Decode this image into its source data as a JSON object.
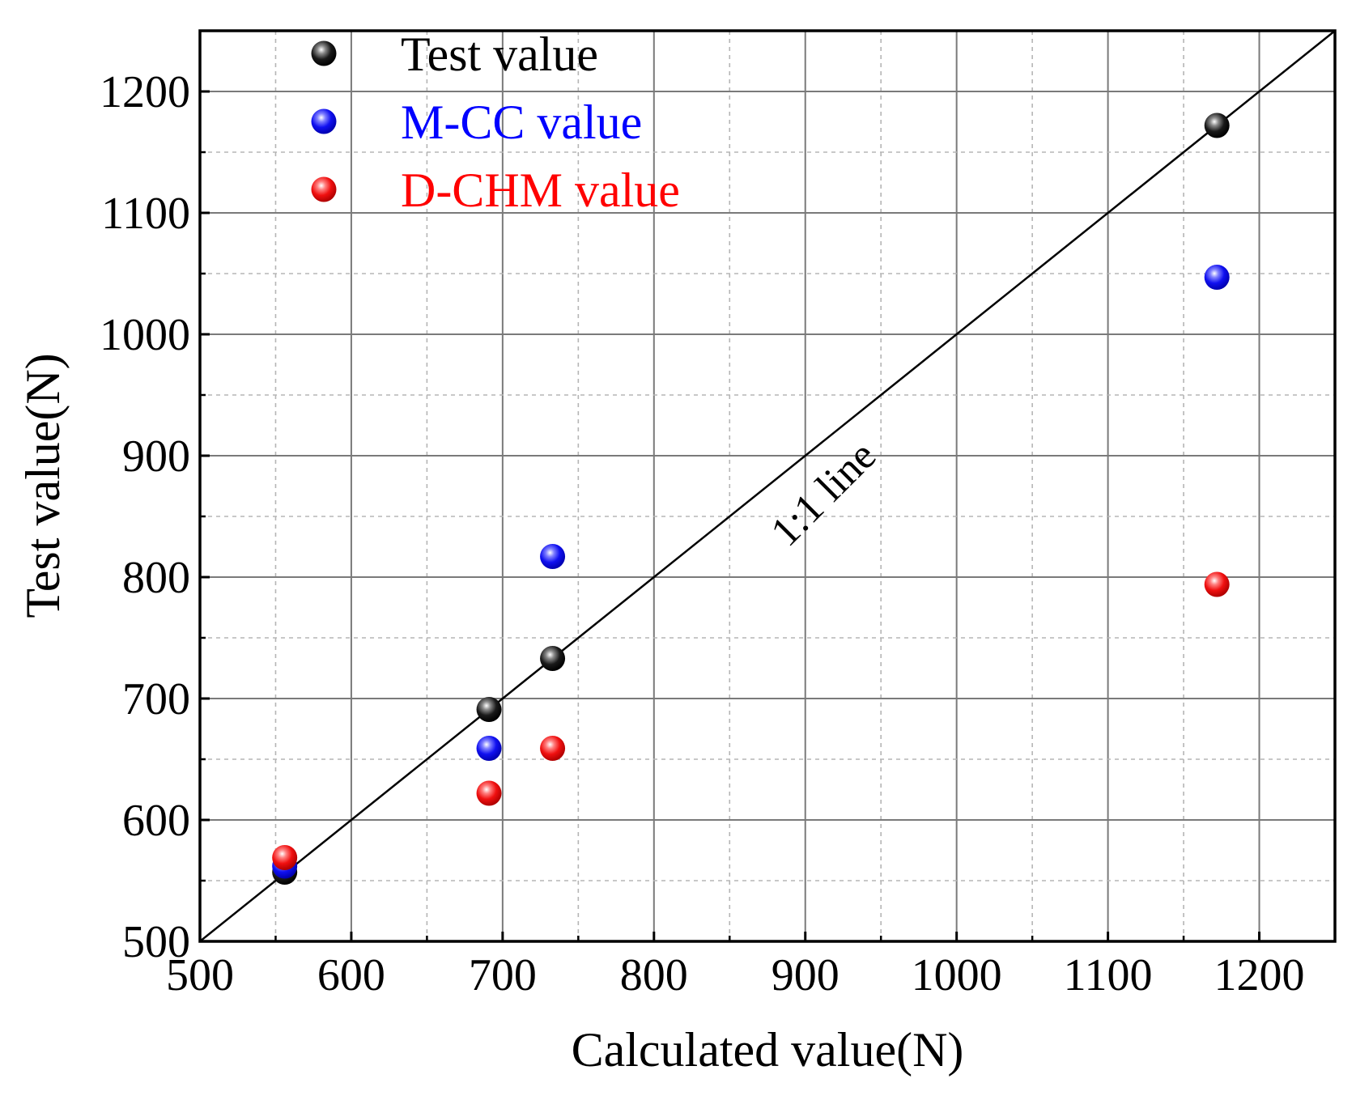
{
  "chart_data": {
    "type": "scatter",
    "title": "",
    "xlabel": "Calculated value(N)",
    "ylabel": "Test value(N)",
    "xlim": [
      500,
      1250
    ],
    "ylim": [
      500,
      1250
    ],
    "xticks": [
      500,
      600,
      700,
      800,
      900,
      1000,
      1100,
      1200
    ],
    "yticks": [
      500,
      600,
      700,
      800,
      900,
      1000,
      1100,
      1200
    ],
    "grid": true,
    "legend_position": "top-left",
    "series": [
      {
        "name": "Test value",
        "color": "#000000",
        "points": [
          [
            556,
            557
          ],
          [
            691,
            691
          ],
          [
            733,
            733
          ],
          [
            1172,
            1172
          ]
        ]
      },
      {
        "name": "M-CC value",
        "color": "#0000ff",
        "points": [
          [
            556,
            562
          ],
          [
            691,
            659
          ],
          [
            733,
            817
          ],
          [
            1172,
            1047
          ]
        ]
      },
      {
        "name": "D-CHM value",
        "color": "#ff0000",
        "points": [
          [
            556,
            569
          ],
          [
            691,
            622
          ],
          [
            733,
            659
          ],
          [
            1172,
            794
          ]
        ]
      }
    ],
    "reference_line": {
      "label": "1:1 line",
      "from": [
        500,
        500
      ],
      "to": [
        1250,
        1250
      ]
    }
  }
}
